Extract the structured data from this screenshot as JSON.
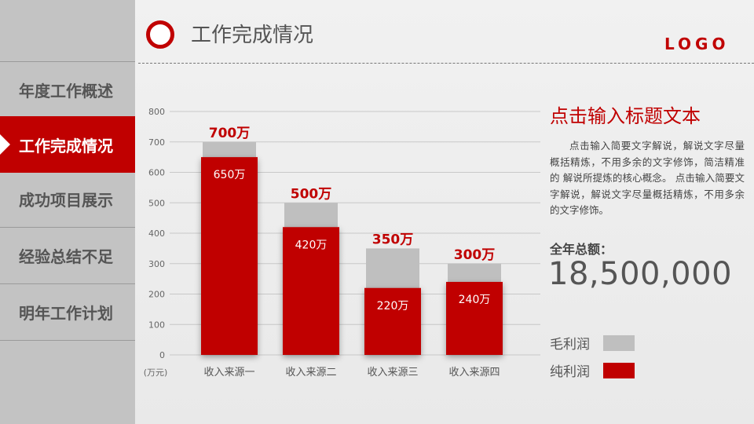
{
  "sidebar": {
    "items": [
      {
        "label": "年度工作概述",
        "active": false
      },
      {
        "label": "工作完成情况",
        "active": true
      },
      {
        "label": "成功项目展示",
        "active": false
      },
      {
        "label": "经验总结不足",
        "active": false
      },
      {
        "label": "明年工作计划",
        "active": false
      }
    ]
  },
  "header": {
    "title": "工作完成情况",
    "logo": "LOGO"
  },
  "colors": {
    "accent": "#c00000",
    "gross": "#bfbfbf",
    "net": "#c00000"
  },
  "chart_data": {
    "type": "bar",
    "categories": [
      "收入来源一",
      "收入来源二",
      "收入来源三",
      "收入来源四"
    ],
    "series": [
      {
        "name": "毛利润",
        "values": [
          700,
          500,
          350,
          300
        ],
        "labels": [
          "700万",
          "500万",
          "350万",
          "300万"
        ],
        "color": "#bfbfbf"
      },
      {
        "name": "纯利润",
        "values": [
          650,
          420,
          220,
          240
        ],
        "labels": [
          "650万",
          "420万",
          "220万",
          "240万"
        ],
        "color": "#c00000"
      }
    ],
    "y_ticks": [
      "0",
      "100",
      "200",
      "300",
      "400",
      "500",
      "600",
      "700",
      "800"
    ],
    "ylim": [
      0,
      800
    ],
    "unit_label": "(万元)",
    "grid": true,
    "overlapping": true
  },
  "side": {
    "title": "点击输入标题文本",
    "body": "点击输入简要文字解说，解说文字尽量概括精炼，不用多余的文字修饰，简洁精准的 解说所提炼的核心概念。 点击输入简要文字解说，解说文字尽量概括精炼，不用多余的文字修饰。",
    "total_label": "全年总额：",
    "total_value": "18,500,000"
  },
  "legend": [
    {
      "label": "毛利润",
      "color": "#bfbfbf"
    },
    {
      "label": "纯利润",
      "color": "#c00000"
    }
  ]
}
